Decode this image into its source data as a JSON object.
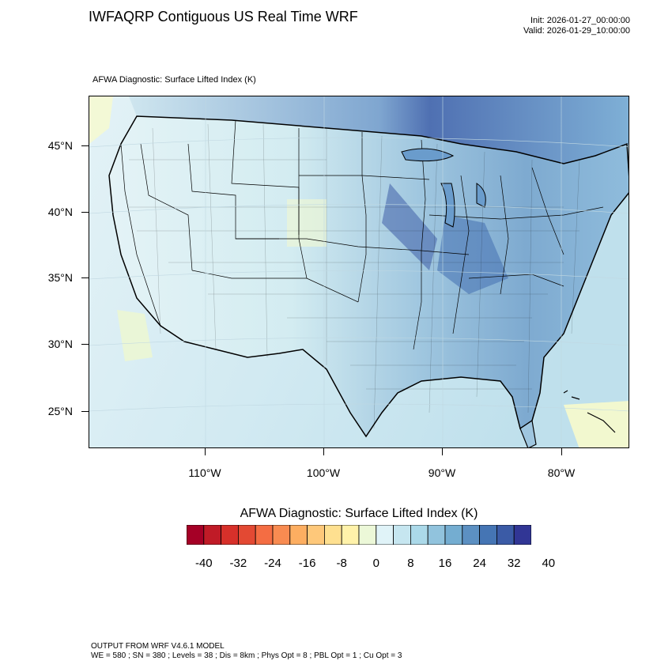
{
  "title": "IWFAQRP Contiguous US Real Time WRF",
  "init_label": "Init: 2026-01-27_00:00:00",
  "valid_label": "Valid: 2026-01-29_10:00:00",
  "subtitle": "AFWA Diagnostic: Surface Lifted Index   (K)",
  "map": {
    "lat_labels": [
      "45°N",
      "40°N",
      "35°N",
      "30°N",
      "25°N"
    ],
    "lon_labels": [
      "110°W",
      "100°W",
      "90°W",
      "80°W"
    ]
  },
  "colorbar": {
    "title": "AFWA Diagnostic: Surface Lifted Index  (K)",
    "labels": [
      "-40",
      "-32",
      "-24",
      "-16",
      "-8",
      "0",
      "8",
      "16",
      "24",
      "32",
      "40"
    ],
    "colors": [
      "#a50026",
      "#c01b27",
      "#d7302a",
      "#e34933",
      "#f46d43",
      "#f88b51",
      "#fdae61",
      "#fec87a",
      "#fee090",
      "#fff2aa",
      "#ecf8d8",
      "#e0f3f8",
      "#c6e6f0",
      "#abd9e9",
      "#91c3dd",
      "#74add1",
      "#5c90c2",
      "#4575b4",
      "#3b5ba6",
      "#313695"
    ]
  },
  "footer": {
    "line1": "OUTPUT FROM WRF V4.6.1 MODEL",
    "line2": "WE = 580 ; SN = 380 ; Levels = 38 ; Dis = 8km ; Phys Opt = 8 ; PBL Opt = 1 ; Cu Opt = 3"
  }
}
